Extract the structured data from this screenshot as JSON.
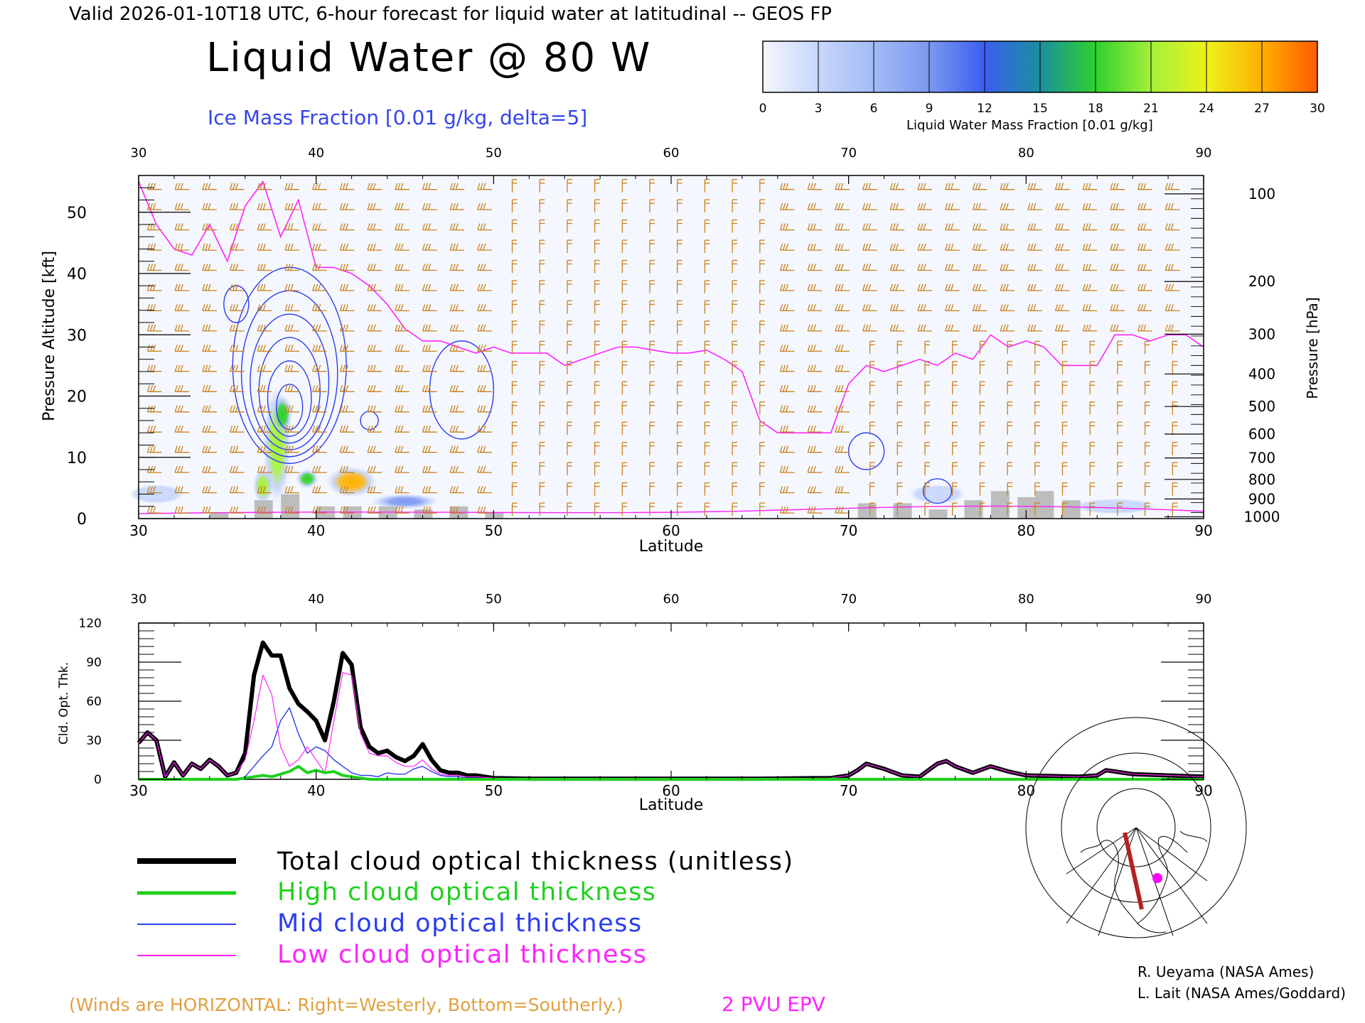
{
  "header": {
    "valid_line": "Valid 2026-01-10T18 UTC, 6-hour forecast for liquid water at latitudinal -- GEOS FP",
    "title": "Liquid Water @ 80 W",
    "subtitle": "Ice Mass Fraction [0.01 g/kg, delta=5]"
  },
  "colorbar": {
    "ticks": [
      "0",
      "3",
      "6",
      "9",
      "12",
      "15",
      "18",
      "21",
      "24",
      "27",
      "30"
    ],
    "label": "Liquid Water Mass Fraction [0.01 g/kg]",
    "colors": [
      "#f4f6ff",
      "#c7d6fb",
      "#a3bcf7",
      "#7c98f0",
      "#3a5ef0",
      "#1a8fa0",
      "#2ed12e",
      "#a3f03a",
      "#ecf21a",
      "#ffb000",
      "#ff5a00"
    ]
  },
  "chart_data": [
    {
      "type": "heatmap",
      "xlabel": "Latitude",
      "ylabel": "Pressure Altitude [kft]",
      "y2label": "Pressure [hPa]",
      "xlim": [
        30,
        90
      ],
      "ylim": [
        0,
        56
      ],
      "x_ticks": [
        "30",
        "40",
        "50",
        "60",
        "70",
        "80",
        "90"
      ],
      "y_ticks": [
        "0",
        "10",
        "20",
        "30",
        "40",
        "50"
      ],
      "pressure_ticks": [
        {
          "label": "100",
          "kft": 53
        },
        {
          "label": "200",
          "kft": 38.7
        },
        {
          "label": "300",
          "kft": 30.1
        },
        {
          "label": "400",
          "kft": 23.6
        },
        {
          "label": "500",
          "kft": 18.3
        },
        {
          "label": "600",
          "kft": 13.8
        },
        {
          "label": "700",
          "kft": 9.9
        },
        {
          "label": "800",
          "kft": 6.4
        },
        {
          "label": "900",
          "kft": 3.2
        },
        {
          "label": "1000",
          "kft": 0.3
        }
      ],
      "liquid_water_blobs": [
        {
          "lat": 37.8,
          "kft": 12,
          "sx": 0.5,
          "sy": 6,
          "value": 20
        },
        {
          "lat": 38.1,
          "kft": 17,
          "sx": 0.35,
          "sy": 2,
          "value": 19
        },
        {
          "lat": 37.0,
          "kft": 5.3,
          "sx": 0.35,
          "sy": 1.8,
          "value": 20
        },
        {
          "lat": 39.5,
          "kft": 6.5,
          "sx": 0.4,
          "sy": 1,
          "value": 17
        },
        {
          "lat": 42.0,
          "kft": 6.0,
          "sx": 0.9,
          "sy": 1.6,
          "value": 26
        },
        {
          "lat": 45.0,
          "kft": 2.8,
          "sx": 1.2,
          "sy": 0.8,
          "value": 10
        },
        {
          "lat": 31.0,
          "kft": 4.0,
          "sx": 1,
          "sy": 1,
          "value": 4
        },
        {
          "lat": 75.0,
          "kft": 4.0,
          "sx": 1,
          "sy": 1,
          "value": 4
        },
        {
          "lat": 85.0,
          "kft": 2.0,
          "sx": 1.5,
          "sy": 0.8,
          "value": 3
        }
      ],
      "epv_2pvu": {
        "lat": [
          30,
          31,
          32,
          33,
          34,
          35,
          36,
          37,
          38,
          39,
          40,
          41,
          42,
          43,
          44,
          45,
          46,
          47,
          48,
          49,
          50,
          51,
          52,
          53,
          54,
          55,
          56,
          57,
          58,
          59,
          60,
          61,
          62,
          63,
          64,
          65,
          66,
          67,
          68,
          69,
          70,
          71,
          72,
          73,
          74,
          75,
          76,
          77,
          78,
          79,
          80,
          81,
          82,
          83,
          84,
          85,
          86,
          87,
          88,
          89,
          90
        ],
        "kft": [
          55,
          48,
          44,
          43,
          48,
          42,
          51,
          55,
          46,
          52,
          41,
          41,
          40,
          38,
          35,
          31,
          29,
          29,
          28,
          27,
          28,
          27,
          27,
          27,
          25,
          26,
          27,
          28,
          28,
          27.5,
          27,
          27,
          27.5,
          26,
          24,
          16,
          14,
          14,
          14,
          14,
          22,
          25,
          24,
          25,
          26,
          25,
          27,
          26,
          30,
          28,
          29,
          28,
          25,
          25,
          25,
          30,
          30,
          29,
          30,
          30,
          28
        ]
      },
      "ice_fraction_contours": [
        {
          "lat": 38.5,
          "kft": 25,
          "rx": 3.2,
          "ry": 16,
          "levels": 6
        },
        {
          "lat": 48.2,
          "kft": 21,
          "rx": 1.8,
          "ry": 8,
          "levels": 1
        },
        {
          "lat": 35.5,
          "kft": 35,
          "rx": 0.7,
          "ry": 3,
          "levels": 1
        },
        {
          "lat": 43.0,
          "kft": 16,
          "rx": 0.5,
          "ry": 1.5,
          "levels": 1
        },
        {
          "lat": 71.0,
          "kft": 11,
          "rx": 1.0,
          "ry": 3,
          "levels": 1
        },
        {
          "lat": 75.0,
          "kft": 4.5,
          "rx": 0.8,
          "ry": 2,
          "levels": 1
        }
      ],
      "terrain_kft": [
        {
          "lat": 34.5,
          "kft": 1
        },
        {
          "lat": 37,
          "kft": 3
        },
        {
          "lat": 38.5,
          "kft": 4
        },
        {
          "lat": 40.5,
          "kft": 2
        },
        {
          "lat": 42,
          "kft": 2
        },
        {
          "lat": 44,
          "kft": 2
        },
        {
          "lat": 46,
          "kft": 1.5
        },
        {
          "lat": 48,
          "kft": 2
        },
        {
          "lat": 50,
          "kft": 1
        },
        {
          "lat": 71,
          "kft": 2.5
        },
        {
          "lat": 73,
          "kft": 2.5
        },
        {
          "lat": 75,
          "kft": 1.5
        },
        {
          "lat": 77,
          "kft": 3
        },
        {
          "lat": 78.5,
          "kft": 4.5
        },
        {
          "lat": 80,
          "kft": 3.5
        },
        {
          "lat": 81,
          "kft": 4.5
        },
        {
          "lat": 82.5,
          "kft": 3
        }
      ],
      "wind_barbs_note": "Winds are HORIZONTAL"
    },
    {
      "type": "line",
      "xlabel": "Latitude",
      "ylabel": "Cld. Opt. Thk.",
      "xlim": [
        30,
        90
      ],
      "ylim": [
        0,
        120
      ],
      "x_ticks": [
        "30",
        "40",
        "50",
        "60",
        "70",
        "80",
        "90"
      ],
      "y_ticks": [
        "0",
        "30",
        "60",
        "90",
        "120"
      ],
      "x": [
        30,
        30.5,
        31,
        31.5,
        32,
        32.5,
        33,
        33.5,
        34,
        34.5,
        35,
        35.5,
        36,
        36.5,
        37,
        37.5,
        38,
        38.5,
        39,
        39.5,
        40,
        40.5,
        41,
        41.5,
        42,
        42.5,
        43,
        43.5,
        44,
        44.5,
        45,
        45.5,
        46,
        46.5,
        47,
        47.5,
        48,
        48.5,
        49,
        49.5,
        50,
        52,
        55,
        60,
        65,
        69,
        70,
        70.5,
        71,
        71.5,
        72,
        73,
        74,
        75,
        75.5,
        76,
        77,
        78,
        79,
        80,
        83,
        84,
        84.5,
        85,
        86,
        88,
        90
      ],
      "series": [
        {
          "name": "Total cloud optical thickness (unitless)",
          "color": "#000000",
          "values": [
            28,
            36,
            30,
            2,
            13,
            3,
            12,
            8,
            15,
            10,
            3,
            5,
            20,
            80,
            105,
            95,
            95,
            70,
            58,
            52,
            45,
            30,
            60,
            97,
            88,
            40,
            25,
            20,
            22,
            17,
            14,
            18,
            27,
            15,
            7,
            5,
            5,
            3,
            3,
            2,
            1,
            0.5,
            0.5,
            0.5,
            0.5,
            1,
            3,
            7,
            12,
            10,
            8,
            3,
            2,
            12,
            14,
            10,
            5,
            10,
            6,
            3,
            2,
            3,
            7,
            6,
            4,
            3,
            2
          ]
        },
        {
          "name": "High cloud optical thickness",
          "color": "#1ed11e",
          "values": [
            0,
            0,
            0,
            0,
            0,
            0,
            0,
            0,
            0,
            0,
            0,
            0,
            1,
            2,
            3,
            2,
            4,
            6,
            10,
            5,
            7,
            5,
            6,
            3,
            2,
            1,
            0,
            0,
            0,
            0,
            0,
            0,
            0,
            0,
            0,
            0,
            0,
            0,
            0,
            0,
            0,
            0,
            0,
            0,
            0,
            0,
            0,
            0,
            0,
            0,
            0,
            0,
            0,
            0,
            0,
            0,
            0,
            0,
            0,
            0,
            0,
            0,
            0,
            0,
            0,
            0,
            0
          ]
        },
        {
          "name": "Mid cloud optical thickness",
          "color": "#2a3cf0",
          "values": [
            0,
            0,
            0,
            0,
            0,
            0,
            0,
            0,
            0,
            0,
            0,
            0,
            2,
            10,
            18,
            25,
            45,
            55,
            35,
            20,
            25,
            22,
            15,
            10,
            5,
            3,
            3,
            2,
            5,
            4,
            4,
            8,
            10,
            6,
            3,
            2,
            2,
            1,
            1,
            0.5,
            0,
            0,
            0,
            0,
            0,
            0,
            0,
            0,
            0,
            0,
            0,
            0,
            0,
            0,
            0,
            0,
            0,
            0,
            0,
            0,
            0,
            0,
            0,
            0,
            0,
            0,
            0
          ]
        },
        {
          "name": "Low cloud optical thickness",
          "color": "#ff22ff",
          "values": [
            28,
            36,
            30,
            2,
            13,
            3,
            12,
            8,
            15,
            10,
            3,
            5,
            15,
            45,
            80,
            65,
            25,
            10,
            15,
            25,
            15,
            5,
            45,
            82,
            80,
            35,
            20,
            18,
            18,
            13,
            10,
            10,
            15,
            8,
            4,
            3,
            3,
            2,
            2,
            1.5,
            1,
            0.5,
            0.5,
            0.5,
            0.5,
            1,
            3,
            7,
            12,
            10,
            8,
            3,
            2,
            12,
            14,
            10,
            5,
            10,
            6,
            3,
            2,
            3,
            7,
            6,
            4,
            3,
            2
          ]
        }
      ]
    }
  ],
  "legend": {
    "items": [
      {
        "label": "Total cloud optical thickness (unitless)",
        "color": "#000000"
      },
      {
        "label": "High cloud optical thickness",
        "color": "#1ed11e"
      },
      {
        "label": "Mid cloud optical thickness",
        "color": "#2a3cf0"
      },
      {
        "label": "Low cloud optical thickness",
        "color": "#ff22ff"
      }
    ]
  },
  "footer": {
    "winds_note": "(Winds are HORIZONTAL: Right=Westerly, Bottom=Southerly.)",
    "epv_label": "2 PVU EPV",
    "credit1": "R. Ueyama (NASA Ames)",
    "credit2": "L. Lait (NASA Ames/Goddard)"
  },
  "colors": {
    "wind": "#c8801a",
    "epv": "#ff22ff",
    "ice_contour": "#2a3cf0",
    "terrain": "#bdbdbd",
    "winds_note": "#e0a040",
    "epv_label": "#ff22ff",
    "subtitle": "#3344ee"
  }
}
